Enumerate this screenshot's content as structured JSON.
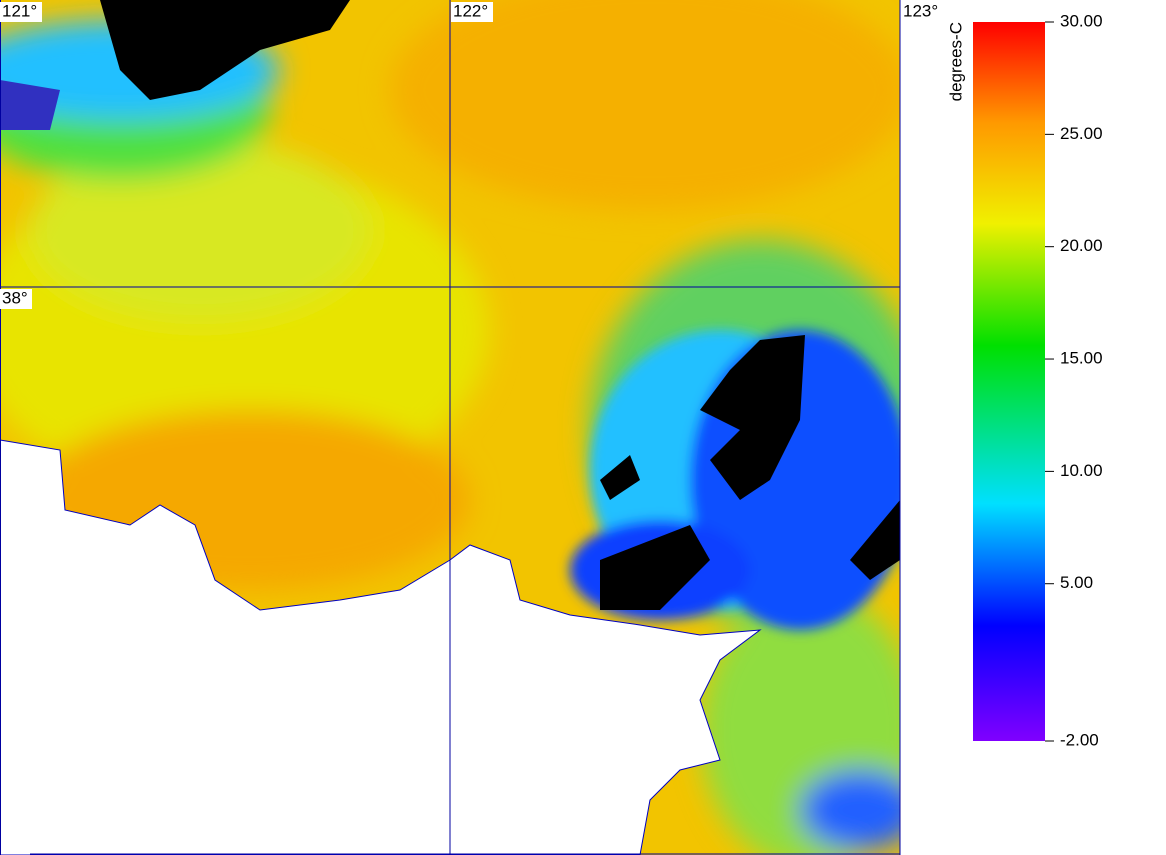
{
  "map": {
    "lon_labels": [
      "121°",
      "122°",
      "123°"
    ],
    "lat_labels": [
      "38°"
    ]
  },
  "colorbar": {
    "label": "degrees-C",
    "lim": [
      -2,
      30
    ],
    "ticks": [
      {
        "value": 30,
        "label": "30.00"
      },
      {
        "value": 25,
        "label": "25.00"
      },
      {
        "value": 20,
        "label": "20.00"
      },
      {
        "value": 15,
        "label": "15.00"
      },
      {
        "value": 10,
        "label": "10.00"
      },
      {
        "value": 5,
        "label": "5.00"
      },
      {
        "value": -2,
        "label": "-2.00"
      }
    ]
  }
}
